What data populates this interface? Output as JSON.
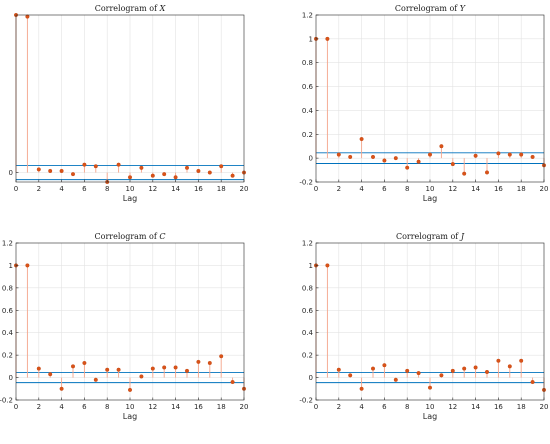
{
  "chart_data": [
    {
      "type": "stem",
      "title_prefix": "Correlogram of ",
      "title_var": "X",
      "xlabel": "Lag",
      "xlim": [
        0,
        20
      ],
      "ylim": [
        -0.06,
        1.0
      ],
      "yticks": [
        0
      ],
      "xticks": [
        0,
        2,
        4,
        6,
        8,
        10,
        12,
        14,
        16,
        18,
        20
      ],
      "grid": true,
      "conf_bounds": [
        0.045,
        -0.045
      ],
      "lags": [
        0,
        1,
        2,
        3,
        4,
        5,
        6,
        7,
        8,
        9,
        10,
        11,
        12,
        13,
        14,
        15,
        16,
        17,
        18,
        19,
        20
      ],
      "values": [
        1.0,
        0.99,
        0.02,
        0.01,
        0.01,
        -0.01,
        0.05,
        0.04,
        -0.06,
        0.05,
        -0.03,
        0.03,
        -0.02,
        -0.01,
        -0.03,
        0.03,
        0.01,
        0.0,
        0.04,
        -0.02,
        0.0
      ]
    },
    {
      "type": "stem",
      "title_prefix": "Correlogram of ",
      "title_var": "Y",
      "xlabel": "Lag",
      "xlim": [
        0,
        20
      ],
      "ylim": [
        -0.2,
        1.2
      ],
      "yticks": [
        -0.2,
        0,
        0.2,
        0.4,
        0.6,
        0.8,
        1,
        1.2
      ],
      "xticks": [
        0,
        2,
        4,
        6,
        8,
        10,
        12,
        14,
        16,
        18,
        20
      ],
      "grid": true,
      "conf_bounds": [
        0.045,
        -0.045
      ],
      "lags": [
        0,
        1,
        2,
        3,
        4,
        5,
        6,
        7,
        8,
        9,
        10,
        11,
        12,
        13,
        14,
        15,
        16,
        17,
        18,
        19,
        20
      ],
      "values": [
        1.0,
        1.0,
        0.03,
        0.01,
        0.16,
        0.01,
        -0.02,
        0.0,
        -0.08,
        -0.03,
        0.03,
        0.1,
        -0.05,
        -0.13,
        0.02,
        -0.12,
        0.04,
        0.03,
        0.03,
        0.01,
        -0.06
      ]
    },
    {
      "type": "stem",
      "title_prefix": "Correlogram of ",
      "title_var": "C",
      "xlabel": "Lag",
      "xlim": [
        0,
        20
      ],
      "ylim": [
        -0.2,
        1.2
      ],
      "yticks": [
        -0.2,
        0,
        0.2,
        0.4,
        0.6,
        0.8,
        1,
        1.2
      ],
      "xticks": [
        0,
        2,
        4,
        6,
        8,
        10,
        12,
        14,
        16,
        18,
        20
      ],
      "grid": true,
      "conf_bounds": [
        0.045,
        -0.045
      ],
      "lags": [
        0,
        1,
        2,
        3,
        4,
        5,
        6,
        7,
        8,
        9,
        10,
        11,
        12,
        13,
        14,
        15,
        16,
        17,
        18,
        19,
        20
      ],
      "values": [
        1.0,
        1.0,
        0.08,
        0.03,
        -0.1,
        0.1,
        0.13,
        -0.02,
        0.07,
        0.07,
        -0.11,
        0.01,
        0.08,
        0.09,
        0.09,
        0.06,
        0.14,
        0.13,
        0.19,
        -0.04,
        -0.1
      ]
    },
    {
      "type": "stem",
      "title_prefix": "Correlogram of ",
      "title_var": "J",
      "xlabel": "Lag",
      "xlim": [
        0,
        20
      ],
      "ylim": [
        -0.2,
        1.2
      ],
      "yticks": [
        -0.2,
        0,
        0.2,
        0.4,
        0.6,
        0.8,
        1,
        1.2
      ],
      "xticks": [
        0,
        2,
        4,
        6,
        8,
        10,
        12,
        14,
        16,
        18,
        20
      ],
      "grid": true,
      "conf_bounds": [
        0.045,
        -0.045
      ],
      "lags": [
        0,
        1,
        2,
        3,
        4,
        5,
        6,
        7,
        8,
        9,
        10,
        11,
        12,
        13,
        14,
        15,
        16,
        17,
        18,
        19,
        20
      ],
      "values": [
        1.0,
        1.0,
        0.07,
        0.02,
        -0.1,
        0.08,
        0.11,
        -0.02,
        0.06,
        0.04,
        -0.09,
        0.02,
        0.06,
        0.08,
        0.09,
        0.05,
        0.15,
        0.1,
        0.15,
        -0.04,
        -0.11
      ]
    }
  ],
  "colors": {
    "stem": "#f4a58a",
    "marker": "#d95319",
    "conf": "#0072bd",
    "grid": "#e3e3e3",
    "axis": "#262626"
  }
}
